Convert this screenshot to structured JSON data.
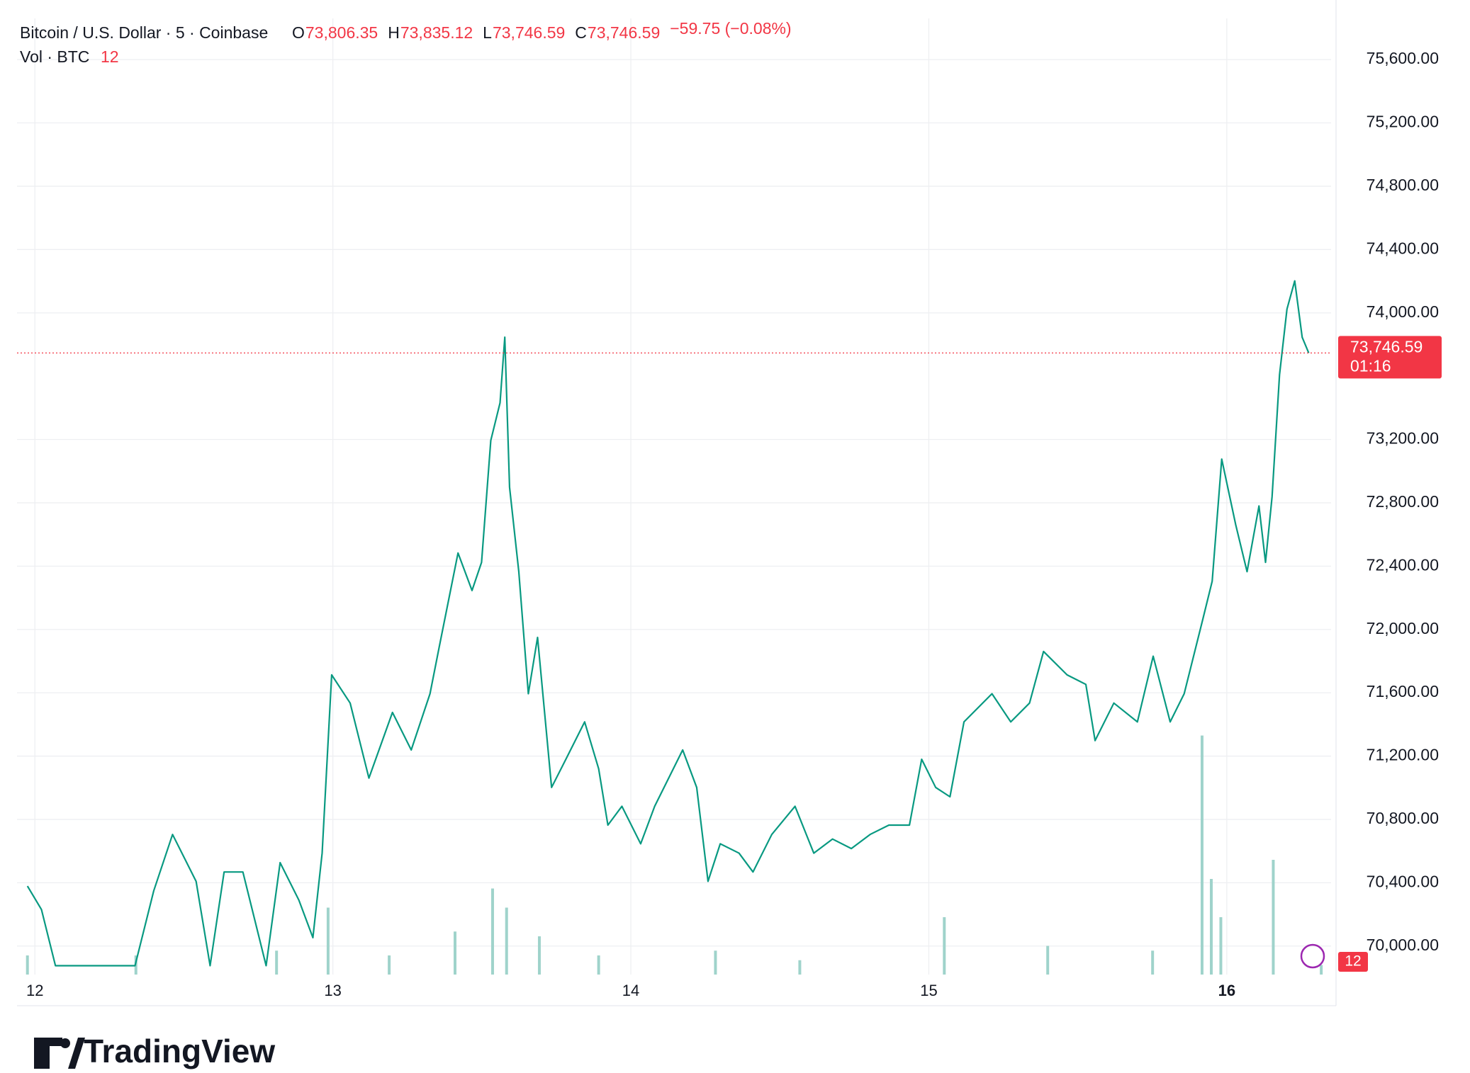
{
  "chart_data": {
    "type": "line",
    "title": "Bitcoin / U.S. Dollar · 5 · Coinbase",
    "ohlc": [
      {
        "name": "O",
        "label": "73,806.35"
      },
      {
        "name": "H",
        "label": "73,835.12"
      },
      {
        "name": "L",
        "label": "73,746.59"
      },
      {
        "name": "C",
        "label": "73,746.59"
      }
    ],
    "change": "−59.75 (−0.08%)",
    "volume_title": "Vol · BTC",
    "volume_last": 12,
    "last": {
      "value": 73746.59,
      "label": "73,746.59"
    },
    "countdown": "01:16",
    "brand": "TradingView",
    "xlim": [
      11.94,
      16.35
    ],
    "xticks": [
      12,
      13,
      14,
      15,
      16
    ],
    "ylim": [
      69820,
      75860
    ],
    "yticks": [
      {
        "value": 70000,
        "label": "70,000.00"
      },
      {
        "value": 70400,
        "label": "70,400.00"
      },
      {
        "value": 70800,
        "label": "70,800.00"
      },
      {
        "value": 71200,
        "label": "71,200.00"
      },
      {
        "value": 71600,
        "label": "71,600.00"
      },
      {
        "value": 72000,
        "label": "72,000.00"
      },
      {
        "value": 72400,
        "label": "72,400.00"
      },
      {
        "value": 72800,
        "label": "72,800.00"
      },
      {
        "value": 73200,
        "label": "73,200.00"
      },
      {
        "value": 74000,
        "label": "74,000.00"
      },
      {
        "value": 74400,
        "label": "74,400.00"
      },
      {
        "value": 74800,
        "label": "74,800.00"
      },
      {
        "value": 75200,
        "label": "75,200.00"
      },
      {
        "value": 75600,
        "label": "75,600.00"
      }
    ],
    "grid": true,
    "series": [
      {
        "name": "BTCUSD",
        "color": "#089981",
        "x": [
          11.975,
          12.022,
          12.069,
          12.195,
          12.336,
          12.399,
          12.462,
          12.541,
          12.588,
          12.635,
          12.698,
          12.776,
          12.823,
          12.886,
          12.933,
          12.964,
          12.996,
          13.058,
          13.121,
          13.2,
          13.263,
          13.326,
          13.357,
          13.42,
          13.467,
          13.499,
          13.53,
          13.561,
          13.577,
          13.593,
          13.624,
          13.656,
          13.687,
          13.734,
          13.782,
          13.845,
          13.892,
          13.923,
          13.97,
          14.033,
          14.08,
          14.127,
          14.174,
          14.221,
          14.259,
          14.3,
          14.363,
          14.41,
          14.473,
          14.551,
          14.614,
          14.677,
          14.74,
          14.803,
          14.866,
          14.935,
          14.976,
          15.023,
          15.071,
          15.118,
          15.212,
          15.275,
          15.338,
          15.385,
          15.464,
          15.527,
          15.558,
          15.621,
          15.7,
          15.753,
          15.81,
          15.857,
          15.92,
          15.951,
          15.983,
          16.03,
          16.068,
          16.108,
          16.13,
          16.152,
          16.177,
          16.202,
          16.228,
          16.253,
          16.275
        ],
        "values": [
          70379,
          70231,
          69876,
          69876,
          69876,
          70350,
          70705,
          70409,
          69876,
          70468,
          70468,
          69876,
          70527,
          70290,
          70053,
          70587,
          71713,
          71535,
          71061,
          71476,
          71239,
          71594,
          71890,
          72483,
          72246,
          72424,
          73194,
          73431,
          73846,
          72898,
          72365,
          71594,
          71950,
          71002,
          71180,
          71416,
          71120,
          70764,
          70883,
          70646,
          70883,
          71061,
          71239,
          71002,
          70409,
          70646,
          70587,
          70468,
          70705,
          70883,
          70587,
          70676,
          70616,
          70705,
          70764,
          70764,
          71180,
          71002,
          70943,
          71416,
          71594,
          71416,
          71535,
          71861,
          71713,
          71653,
          71298,
          71535,
          71416,
          71831,
          71416,
          71594,
          72068,
          72305,
          73076,
          72661,
          72365,
          72780,
          72424,
          72839,
          73609,
          74024,
          74202,
          73846,
          73746.59
        ]
      }
    ],
    "volume": {
      "color": "#9fd3cb",
      "x": [
        11.975,
        12.339,
        12.811,
        12.984,
        13.189,
        13.41,
        13.536,
        13.583,
        13.693,
        13.892,
        14.284,
        14.567,
        15.052,
        15.399,
        15.751,
        15.917,
        15.948,
        15.98,
        16.156,
        16.317
      ],
      "values": [
        24,
        24,
        30,
        84,
        24,
        54,
        108,
        84,
        48,
        24,
        30,
        18,
        72,
        36,
        30,
        300,
        120,
        72,
        144,
        12
      ],
      "ylim": [
        0,
        1200
      ]
    }
  }
}
